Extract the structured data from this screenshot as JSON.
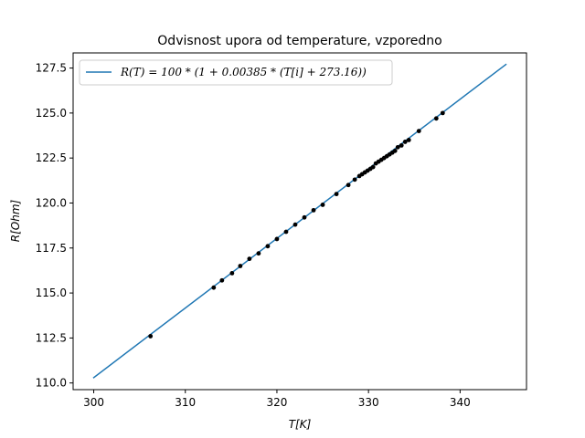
{
  "chart_data": {
    "type": "line",
    "title": "Odvisnost upora od temperature, vzporedno",
    "xlabel": "T[K]",
    "ylabel": "R[Ohm]",
    "xlim": [
      297.75,
      347.25
    ],
    "ylim": [
      109.63,
      128.34
    ],
    "xticks": [
      300,
      310,
      320,
      330,
      340
    ],
    "yticks": [
      110.0,
      112.5,
      115.0,
      117.5,
      120.0,
      122.5,
      125.0,
      127.5
    ],
    "xtick_labels": [
      "300",
      "310",
      "320",
      "330",
      "340"
    ],
    "ytick_labels": [
      "110.0",
      "112.5",
      "115.0",
      "117.5",
      "120.0",
      "122.5",
      "125.0",
      "127.5"
    ],
    "grid": false,
    "legend_position": "top-left",
    "colors": {
      "line": "#1f77b4",
      "points": "#000000"
    },
    "series": [
      {
        "name": "R(T) = 100 * (1 + 0.00385 * (T[i] + 273.16))",
        "kind": "line",
        "x": [
          300,
          345
        ],
        "y": [
          110.3,
          127.7
        ]
      },
      {
        "kind": "scatter",
        "x": [
          306.2,
          313.1,
          314.0,
          315.1,
          316.0,
          317.0,
          318.0,
          319.0,
          320.0,
          321.0,
          322.0,
          323.0,
          324.0,
          325.0,
          326.5,
          327.8,
          328.5,
          329.0,
          329.3,
          329.6,
          329.9,
          330.2,
          330.5,
          330.8,
          331.1,
          331.4,
          331.7,
          332.0,
          332.3,
          332.6,
          332.9,
          333.2,
          333.6,
          334.0,
          334.4,
          335.5,
          337.4,
          338.1
        ],
        "y": [
          112.6,
          115.3,
          115.7,
          116.1,
          116.5,
          116.9,
          117.2,
          117.6,
          118.0,
          118.4,
          118.8,
          119.2,
          119.6,
          119.9,
          120.5,
          121.0,
          121.3,
          121.5,
          121.6,
          121.7,
          121.8,
          121.9,
          122.0,
          122.2,
          122.3,
          122.4,
          122.5,
          122.6,
          122.7,
          122.8,
          122.9,
          123.1,
          123.2,
          123.4,
          123.5,
          124.0,
          124.7,
          125.0
        ]
      }
    ]
  }
}
